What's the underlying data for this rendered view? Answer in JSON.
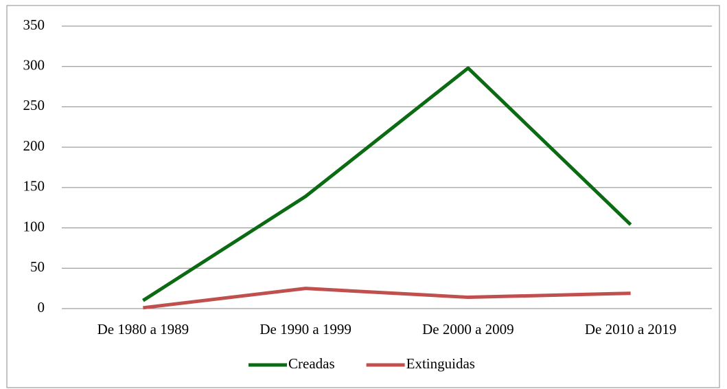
{
  "chart_data": {
    "type": "line",
    "categories": [
      "De 1980 a 1989",
      "De 1990 a 1999",
      "De 2000 a 2009",
      "De 2010 a 2019"
    ],
    "series": [
      {
        "name": "Creadas",
        "color": "#0b6b12",
        "values": [
          10,
          139,
          298,
          104
        ]
      },
      {
        "name": "Extinguidas",
        "color": "#c0504d",
        "values": [
          1,
          25,
          14,
          19
        ]
      }
    ],
    "ylim": [
      0,
      350
    ],
    "yticks": [
      0,
      50,
      100,
      150,
      200,
      250,
      300,
      350
    ],
    "grid": true,
    "legend": "bottom"
  }
}
